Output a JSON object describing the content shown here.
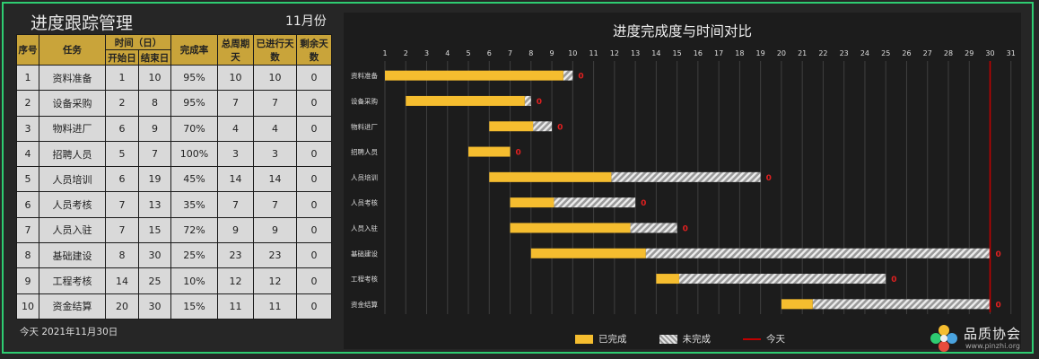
{
  "header": {
    "title": "进度跟踪管理",
    "month": "11月份"
  },
  "table": {
    "headers": {
      "index": "序号",
      "task": "任务",
      "time_group": "时间（日）",
      "start": "开始日",
      "end": "结束日",
      "completion": "完成率",
      "total_days": "总周期天",
      "elapsed_days": "已进行天数",
      "remaining_days": "剩余天数"
    },
    "rows": [
      {
        "idx": "1",
        "task": "资料准备",
        "start": "1",
        "end": "10",
        "rate": "95%",
        "total": "10",
        "elapsed": "10",
        "remain": "0"
      },
      {
        "idx": "2",
        "task": "设备采购",
        "start": "2",
        "end": "8",
        "rate": "95%",
        "total": "7",
        "elapsed": "7",
        "remain": "0"
      },
      {
        "idx": "3",
        "task": "物料进厂",
        "start": "6",
        "end": "9",
        "rate": "70%",
        "total": "4",
        "elapsed": "4",
        "remain": "0"
      },
      {
        "idx": "4",
        "task": "招聘人员",
        "start": "5",
        "end": "7",
        "rate": "100%",
        "total": "3",
        "elapsed": "3",
        "remain": "0"
      },
      {
        "idx": "5",
        "task": "人员培训",
        "start": "6",
        "end": "19",
        "rate": "45%",
        "total": "14",
        "elapsed": "14",
        "remain": "0"
      },
      {
        "idx": "6",
        "task": "人员考核",
        "start": "7",
        "end": "13",
        "rate": "35%",
        "total": "7",
        "elapsed": "7",
        "remain": "0"
      },
      {
        "idx": "7",
        "task": "人员入驻",
        "start": "7",
        "end": "15",
        "rate": "72%",
        "total": "9",
        "elapsed": "9",
        "remain": "0"
      },
      {
        "idx": "8",
        "task": "基础建设",
        "start": "8",
        "end": "30",
        "rate": "25%",
        "total": "23",
        "elapsed": "23",
        "remain": "0"
      },
      {
        "idx": "9",
        "task": "工程考核",
        "start": "14",
        "end": "25",
        "rate": "10%",
        "total": "12",
        "elapsed": "12",
        "remain": "0"
      },
      {
        "idx": "10",
        "task": "资金结算",
        "start": "20",
        "end": "30",
        "rate": "15%",
        "total": "11",
        "elapsed": "11",
        "remain": "0"
      }
    ]
  },
  "today_text": "今天 2021年11月30日",
  "chart_data": {
    "type": "bar",
    "title": "进度完成度与时间对比",
    "x_ticks": [
      "1",
      "2",
      "3",
      "4",
      "5",
      "6",
      "7",
      "8",
      "9",
      "10",
      "11",
      "12",
      "13",
      "14",
      "15",
      "16",
      "17",
      "18",
      "19",
      "20",
      "21",
      "22",
      "23",
      "24",
      "25",
      "26",
      "27",
      "28",
      "29",
      "30",
      "31"
    ],
    "xlim": [
      1,
      31
    ],
    "today": 30,
    "legend": {
      "done": "已完成",
      "todo": "未完成",
      "today": "今天"
    },
    "legend_position": "bottom",
    "colors": {
      "done": "#f5bd2f",
      "today": "#c00000",
      "remaining_label": "#e02020"
    },
    "tasks": [
      {
        "name": "资料准备",
        "start": 1,
        "end": 10,
        "completion": 0.95,
        "remaining": 0
      },
      {
        "name": "设备采购",
        "start": 2,
        "end": 8,
        "completion": 0.95,
        "remaining": 0
      },
      {
        "name": "物料进厂",
        "start": 6,
        "end": 9,
        "completion": 0.7,
        "remaining": 0
      },
      {
        "name": "招聘人员",
        "start": 5,
        "end": 7,
        "completion": 1.0,
        "remaining": 0
      },
      {
        "name": "人员培训",
        "start": 6,
        "end": 19,
        "completion": 0.45,
        "remaining": 0
      },
      {
        "name": "人员考核",
        "start": 7,
        "end": 13,
        "completion": 0.35,
        "remaining": 0
      },
      {
        "name": "人员入驻",
        "start": 7,
        "end": 15,
        "completion": 0.72,
        "remaining": 0
      },
      {
        "name": "基础建设",
        "start": 8,
        "end": 30,
        "completion": 0.25,
        "remaining": 0
      },
      {
        "name": "工程考核",
        "start": 14,
        "end": 25,
        "completion": 0.1,
        "remaining": 0
      },
      {
        "name": "资金结算",
        "start": 20,
        "end": 30,
        "completion": 0.15,
        "remaining": 0
      }
    ]
  },
  "logo": {
    "name": "品质协会",
    "url": "www.pinzhi.org"
  }
}
